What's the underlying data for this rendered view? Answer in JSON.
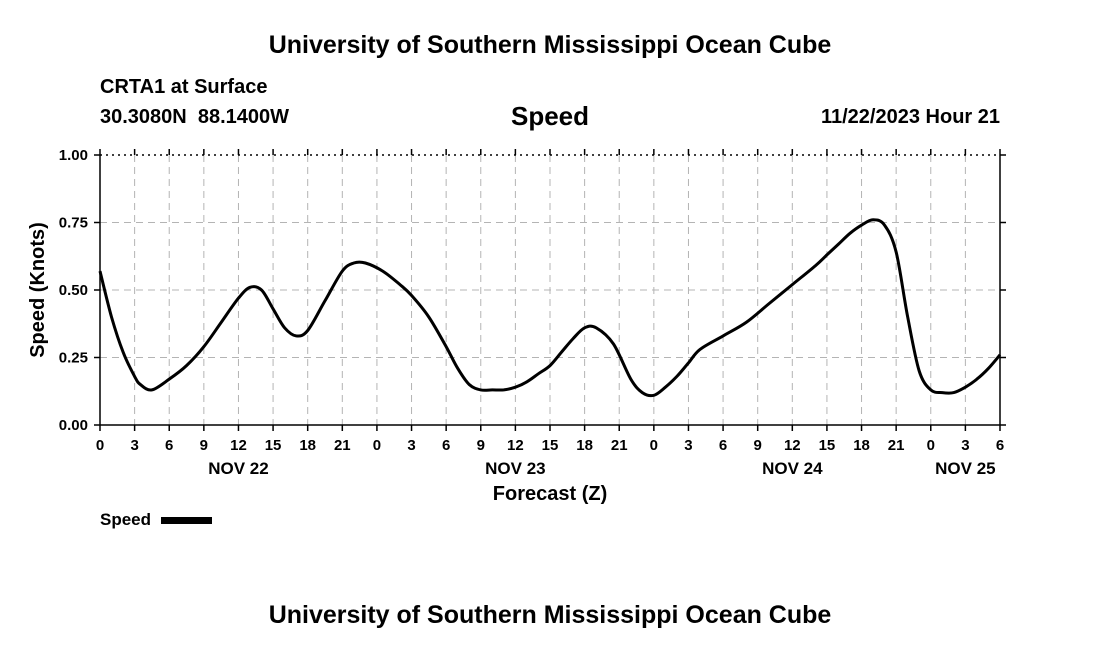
{
  "header": {
    "title": "University of Southern Mississippi Ocean Cube",
    "station": "CRTA1 at Surface",
    "coords": "30.3080N  88.1400W",
    "variable": "Speed",
    "issued": "11/22/2023 Hour 21"
  },
  "footer": {
    "title": "University of Southern Mississippi Ocean Cube"
  },
  "chart_data": {
    "type": "line",
    "title": "Speed",
    "xlabel": "Forecast (Z)",
    "ylabel": "Speed (Knots)",
    "xunits": "hours since NOV 22 00Z",
    "ylim": [
      0,
      1.0
    ],
    "xlim": [
      0,
      78
    ],
    "grid": true,
    "yticks": [
      {
        "value": 0,
        "label": "0.00"
      },
      {
        "value": 0.25,
        "label": "0.25"
      },
      {
        "value": 0.5,
        "label": "0.50"
      },
      {
        "value": 0.75,
        "label": "0.75"
      },
      {
        "value": 1.0,
        "label": "1.00"
      }
    ],
    "xticks": [
      {
        "value": 0,
        "label": "0"
      },
      {
        "value": 3,
        "label": "3"
      },
      {
        "value": 6,
        "label": "6"
      },
      {
        "value": 9,
        "label": "9"
      },
      {
        "value": 12,
        "label": "12"
      },
      {
        "value": 15,
        "label": "15"
      },
      {
        "value": 18,
        "label": "18"
      },
      {
        "value": 21,
        "label": "21"
      },
      {
        "value": 24,
        "label": "0"
      },
      {
        "value": 27,
        "label": "3"
      },
      {
        "value": 30,
        "label": "6"
      },
      {
        "value": 33,
        "label": "9"
      },
      {
        "value": 36,
        "label": "12"
      },
      {
        "value": 39,
        "label": "15"
      },
      {
        "value": 42,
        "label": "18"
      },
      {
        "value": 45,
        "label": "21"
      },
      {
        "value": 48,
        "label": "0"
      },
      {
        "value": 51,
        "label": "3"
      },
      {
        "value": 54,
        "label": "6"
      },
      {
        "value": 57,
        "label": "9"
      },
      {
        "value": 60,
        "label": "12"
      },
      {
        "value": 63,
        "label": "15"
      },
      {
        "value": 66,
        "label": "18"
      },
      {
        "value": 69,
        "label": "21"
      },
      {
        "value": 72,
        "label": "0"
      },
      {
        "value": 75,
        "label": "3"
      },
      {
        "value": 78,
        "label": "6"
      }
    ],
    "day_labels": [
      {
        "value": 12,
        "label": "NOV 22"
      },
      {
        "value": 36,
        "label": "NOV 23"
      },
      {
        "value": 60,
        "label": "NOV 24"
      },
      {
        "value": 75,
        "label": "NOV 25"
      }
    ],
    "legend": {
      "label": "Speed",
      "placement": "bottom-left"
    },
    "series": [
      {
        "name": "Speed",
        "x": [
          0,
          1,
          2,
          3,
          3.5,
          4.5,
          6,
          7.5,
          9,
          10.5,
          12,
          13,
          14,
          15,
          16,
          17,
          18,
          19.5,
          21,
          22,
          23,
          24.5,
          26,
          27,
          28.5,
          30,
          31,
          32,
          33,
          34,
          35,
          36,
          37,
          38,
          39,
          40,
          41,
          42,
          43,
          44.5,
          46,
          47,
          48,
          49,
          50,
          51,
          52,
          54,
          56,
          58,
          60,
          62,
          63,
          64,
          65,
          66,
          67,
          68,
          69,
          70,
          71,
          72,
          73,
          74,
          75,
          76,
          77,
          78
        ],
        "y": [
          0.57,
          0.4,
          0.27,
          0.18,
          0.15,
          0.13,
          0.17,
          0.22,
          0.29,
          0.38,
          0.47,
          0.51,
          0.5,
          0.43,
          0.36,
          0.33,
          0.35,
          0.46,
          0.57,
          0.6,
          0.6,
          0.57,
          0.52,
          0.48,
          0.4,
          0.29,
          0.21,
          0.15,
          0.13,
          0.13,
          0.13,
          0.14,
          0.16,
          0.19,
          0.22,
          0.27,
          0.32,
          0.36,
          0.36,
          0.3,
          0.17,
          0.12,
          0.11,
          0.14,
          0.18,
          0.23,
          0.28,
          0.33,
          0.38,
          0.45,
          0.52,
          0.59,
          0.63,
          0.67,
          0.71,
          0.74,
          0.76,
          0.74,
          0.64,
          0.4,
          0.2,
          0.13,
          0.12,
          0.12,
          0.14,
          0.17,
          0.21,
          0.26
        ]
      }
    ]
  }
}
